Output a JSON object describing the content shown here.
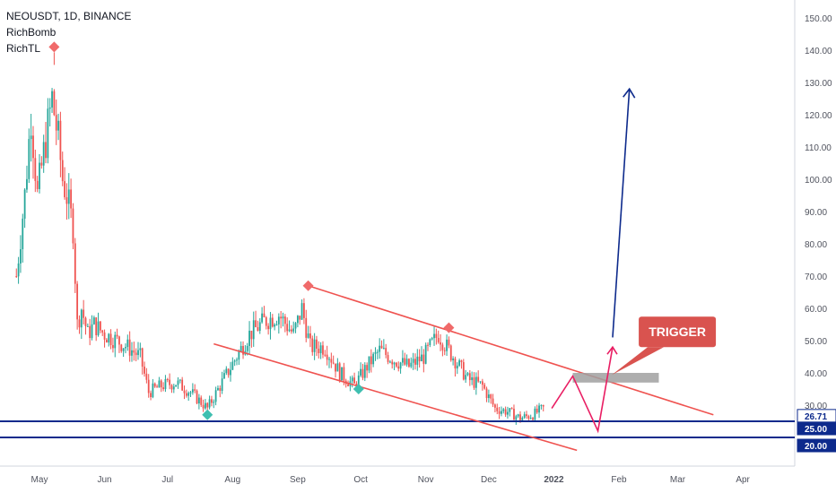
{
  "legend": {
    "symbol_line": "NEOUSDT, 1D, BINANCE",
    "indicator_1": "RichBomb",
    "indicator_2": "RichTL"
  },
  "colors": {
    "up_candle": "#26a69a",
    "down_candle": "#ef5350",
    "channel_line": "#ef5350",
    "horizontal_level": "#0d2a8c",
    "target_arrow": "#0d2a8c",
    "path_arrow": "#e91e63",
    "trigger_label_bg": "#d9534f",
    "zone_fill": "#a0a0a0",
    "marker_top": "#f06a6a",
    "marker_bottom": "#3fbfb0",
    "axis_text": "#50535e",
    "badge_bg": "#0d2a8c",
    "badge_text": "#ffffff"
  },
  "chart_data": {
    "type": "candlestick",
    "title": "NEOUSDT, 1D, BINANCE",
    "x_axis_labels": [
      "May",
      "Jun",
      "Jul",
      "Aug",
      "Sep",
      "Oct",
      "Nov",
      "Dec",
      "2022",
      "Feb",
      "Mar",
      "Apr"
    ],
    "y_axis_ticks": [
      "150.00",
      "140.00",
      "130.00",
      "120.00",
      "110.00",
      "100.00",
      "90.00",
      "80.00",
      "70.00",
      "60.00",
      "50.00",
      "40.00",
      "30.00"
    ],
    "ylim": [
      15,
      155
    ],
    "price_badges": [
      "26.71",
      "25.00",
      "20.00"
    ],
    "horizontal_levels": [
      25.0,
      20.0
    ],
    "close_series": [
      {
        "date": "2021-04-20",
        "close": 70
      },
      {
        "date": "2021-04-24",
        "close": 95
      },
      {
        "date": "2021-04-27",
        "close": 120
      },
      {
        "date": "2021-04-30",
        "close": 95
      },
      {
        "date": "2021-05-03",
        "close": 108
      },
      {
        "date": "2021-05-07",
        "close": 125
      },
      {
        "date": "2021-05-10",
        "close": 112
      },
      {
        "date": "2021-05-12",
        "close": 100
      },
      {
        "date": "2021-05-14",
        "close": 95
      },
      {
        "date": "2021-05-17",
        "close": 85
      },
      {
        "date": "2021-05-19",
        "close": 55
      },
      {
        "date": "2021-05-21",
        "close": 60
      },
      {
        "date": "2021-05-24",
        "close": 52
      },
      {
        "date": "2021-05-27",
        "close": 55
      },
      {
        "date": "2021-06-01",
        "close": 52
      },
      {
        "date": "2021-06-07",
        "close": 50
      },
      {
        "date": "2021-06-12",
        "close": 48
      },
      {
        "date": "2021-06-18",
        "close": 45
      },
      {
        "date": "2021-06-22",
        "close": 34
      },
      {
        "date": "2021-06-28",
        "close": 36
      },
      {
        "date": "2021-07-05",
        "close": 37
      },
      {
        "date": "2021-07-12",
        "close": 34
      },
      {
        "date": "2021-07-20",
        "close": 29
      },
      {
        "date": "2021-07-26",
        "close": 36
      },
      {
        "date": "2021-08-02",
        "close": 44
      },
      {
        "date": "2021-08-09",
        "close": 52
      },
      {
        "date": "2021-08-16",
        "close": 56
      },
      {
        "date": "2021-08-23",
        "close": 58
      },
      {
        "date": "2021-08-30",
        "close": 52
      },
      {
        "date": "2021-09-03",
        "close": 60
      },
      {
        "date": "2021-09-07",
        "close": 48
      },
      {
        "date": "2021-09-14",
        "close": 48
      },
      {
        "date": "2021-09-21",
        "close": 40
      },
      {
        "date": "2021-09-28",
        "close": 36
      },
      {
        "date": "2021-10-04",
        "close": 42
      },
      {
        "date": "2021-10-10",
        "close": 47
      },
      {
        "date": "2021-10-17",
        "close": 44
      },
      {
        "date": "2021-10-24",
        "close": 42
      },
      {
        "date": "2021-10-31",
        "close": 45
      },
      {
        "date": "2021-11-07",
        "close": 52
      },
      {
        "date": "2021-11-14",
        "close": 45
      },
      {
        "date": "2021-11-21",
        "close": 38
      },
      {
        "date": "2021-11-28",
        "close": 36
      },
      {
        "date": "2021-12-04",
        "close": 29
      },
      {
        "date": "2021-12-10",
        "close": 28
      },
      {
        "date": "2021-12-16",
        "close": 26
      },
      {
        "date": "2021-12-22",
        "close": 27
      },
      {
        "date": "2021-12-27",
        "close": 29
      }
    ],
    "signal_markers": [
      {
        "kind": "top",
        "date": "2021-05-08",
        "price": 141
      },
      {
        "kind": "top",
        "date": "2021-09-06",
        "price": 67
      },
      {
        "kind": "top",
        "date": "2021-11-12",
        "price": 54
      },
      {
        "kind": "bottom",
        "date": "2021-07-20",
        "price": 27
      },
      {
        "kind": "bottom",
        "date": "2021-09-30",
        "price": 35
      }
    ],
    "trendlines": [
      {
        "from": {
          "date": "2021-09-06",
          "price": 67
        },
        "to": {
          "date": "2022-03-18",
          "price": 27
        }
      },
      {
        "from": {
          "date": "2021-07-23",
          "price": 49
        },
        "to": {
          "date": "2022-01-12",
          "price": 16
        }
      }
    ],
    "zone": {
      "from_date": "2022-01-10",
      "to_date": "2022-02-20",
      "low": 37,
      "high": 40
    },
    "path_arrow": [
      {
        "date": "2021-12-31",
        "price": 29
      },
      {
        "date": "2022-01-10",
        "price": 39
      },
      {
        "date": "2022-01-22",
        "price": 22
      },
      {
        "date": "2022-01-29",
        "price": 48
      }
    ],
    "target_arrow": [
      {
        "date": "2022-01-29",
        "price": 51
      },
      {
        "date": "2022-02-06",
        "price": 128
      }
    ],
    "annotation": {
      "text": "TRIGGER",
      "date": "2022-02-13",
      "price": 53
    }
  }
}
